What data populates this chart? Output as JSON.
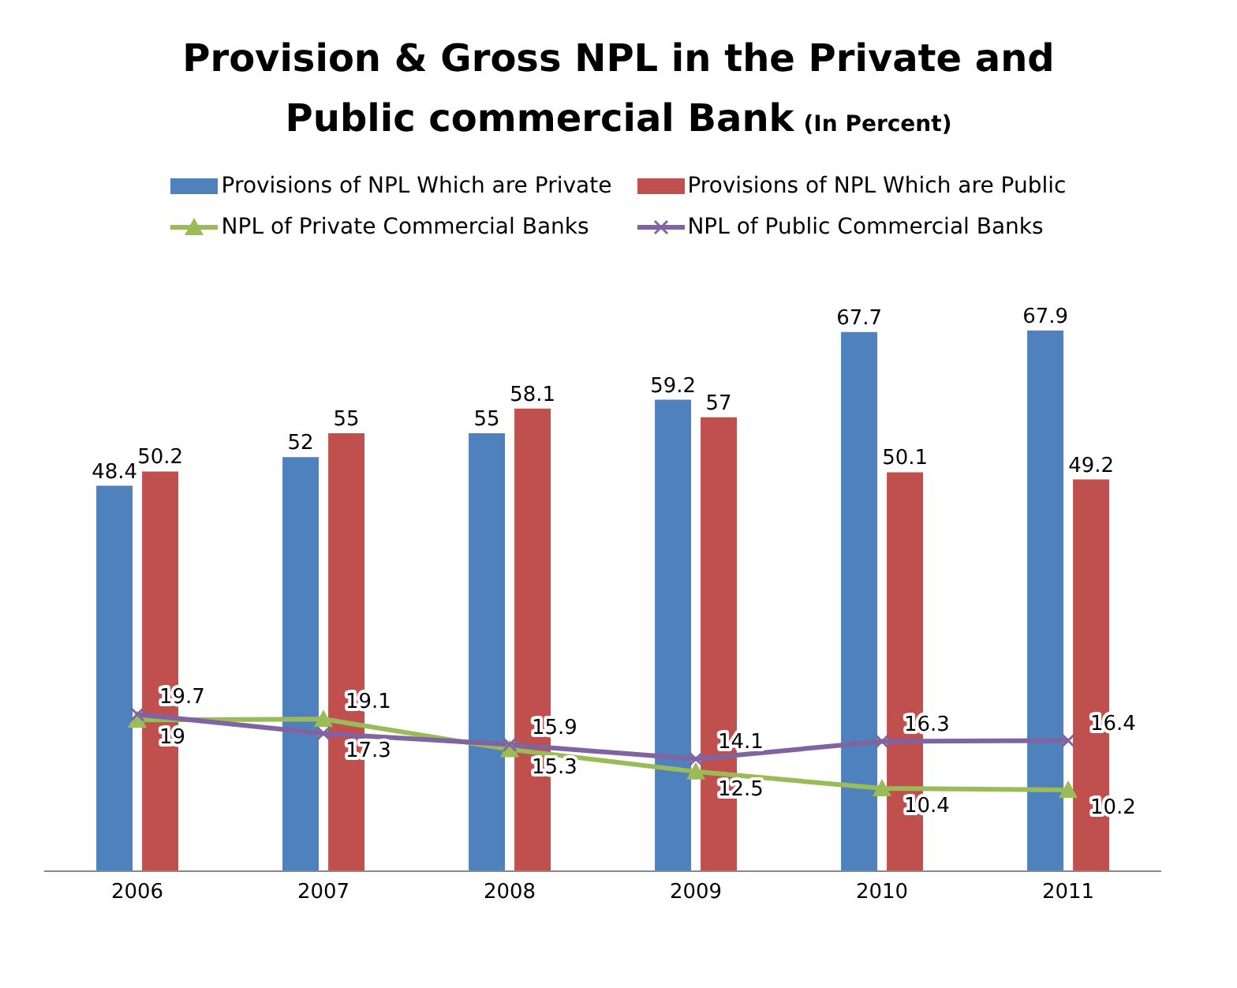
{
  "chart_data": {
    "type": "bar",
    "title": "Provision & Gross NPL in the Private and Public commercial Bank",
    "subtitle": "(In Percent)",
    "categories": [
      "2006",
      "2007",
      "2008",
      "2009",
      "2010",
      "2011"
    ],
    "series": [
      {
        "name": "Provisions of NPL  Which are Private",
        "color": "#4f81bd",
        "values": [
          48.4,
          52,
          55,
          59.2,
          67.7,
          67.9
        ]
      },
      {
        "name": "Provisions of NPL  Which are Public",
        "color": "#c0504d",
        "values": [
          50.2,
          55,
          58.1,
          57,
          50.1,
          49.2
        ]
      },
      {
        "name": "NPL of Private Commercial Banks",
        "type": "line",
        "marker": "triangle",
        "color": "#9bbb59",
        "values": [
          19,
          19.1,
          15.3,
          12.5,
          10.4,
          10.2
        ]
      },
      {
        "name": "NPL of Public Commercial Banks",
        "type": "line",
        "marker": "cross",
        "color": "#8064a2",
        "values": [
          19.7,
          17.3,
          15.9,
          14.1,
          16.3,
          16.4
        ]
      }
    ],
    "data_labels": true,
    "grid": false,
    "legend": "top"
  }
}
